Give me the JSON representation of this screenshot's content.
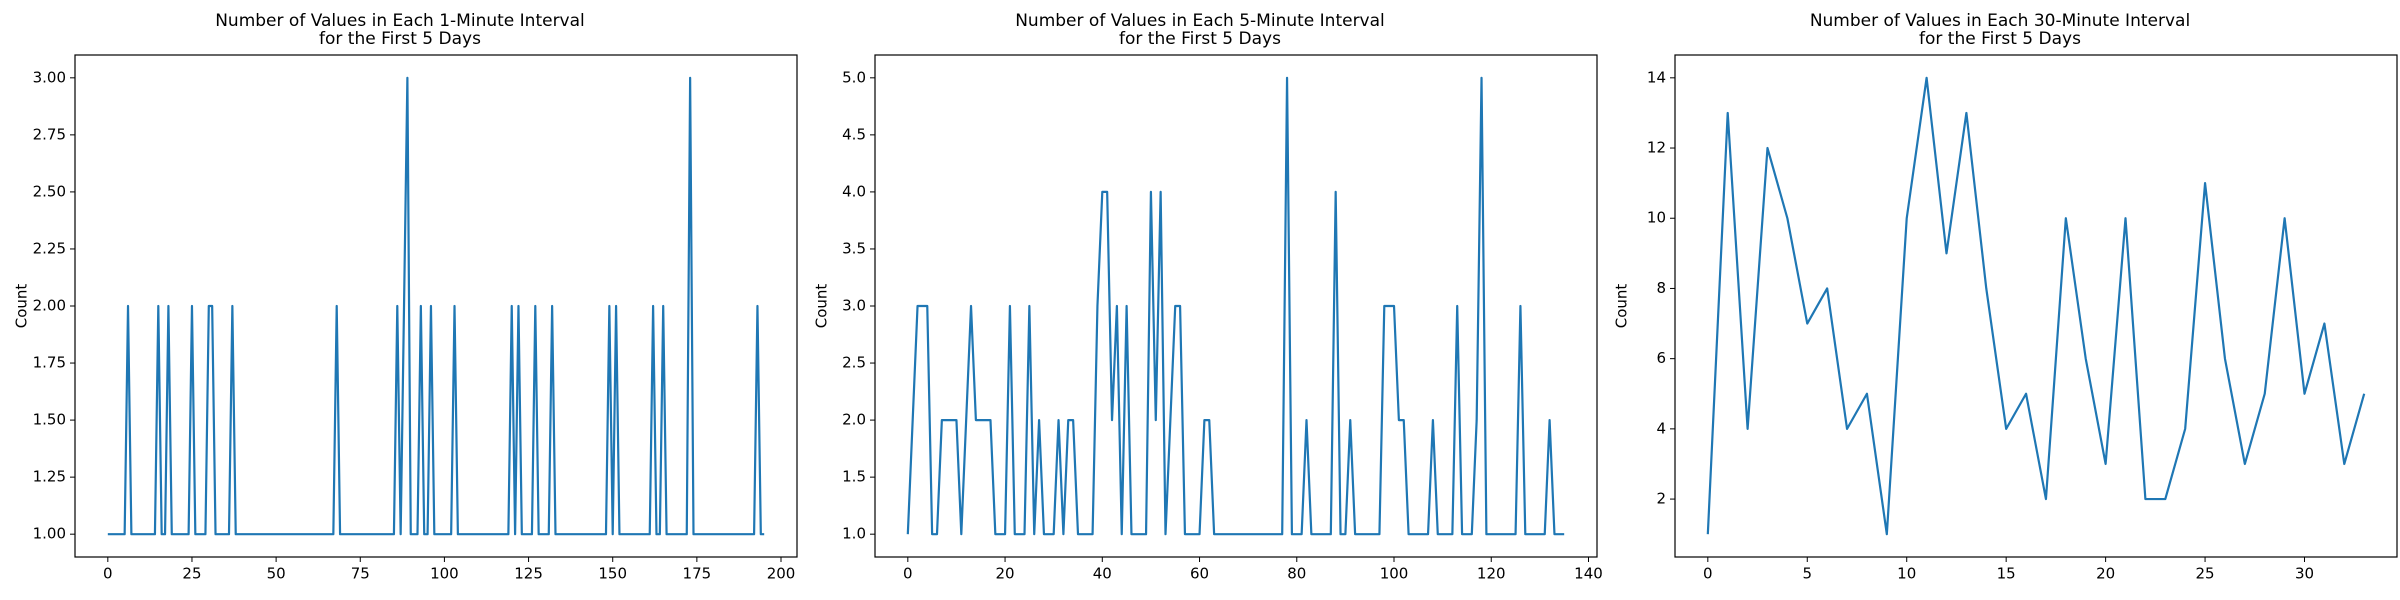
{
  "chart_data": [
    {
      "type": "line",
      "title": "Number of Values in Each 1-Minute Interval\nfor the First 5 Days",
      "y_label": "Count",
      "color": "#1f77b4",
      "values": [
        1,
        1,
        1,
        1,
        1,
        1,
        2,
        1,
        1,
        1,
        1,
        1,
        1,
        1,
        1,
        2,
        1,
        1,
        2,
        1,
        1,
        1,
        1,
        1,
        1,
        2,
        1,
        1,
        1,
        1,
        2,
        2,
        1,
        1,
        1,
        1,
        1,
        2,
        1,
        1,
        1,
        1,
        1,
        1,
        1,
        1,
        1,
        1,
        1,
        1,
        1,
        1,
        1,
        1,
        1,
        1,
        1,
        1,
        1,
        1,
        1,
        1,
        1,
        1,
        1,
        1,
        1,
        1,
        2,
        1,
        1,
        1,
        1,
        1,
        1,
        1,
        1,
        1,
        1,
        1,
        1,
        1,
        1,
        1,
        1,
        1,
        2,
        1,
        2,
        3,
        1,
        1,
        1,
        2,
        1,
        1,
        2,
        1,
        1,
        1,
        1,
        1,
        1,
        2,
        1,
        1,
        1,
        1,
        1,
        1,
        1,
        1,
        1,
        1,
        1,
        1,
        1,
        1,
        1,
        1,
        2,
        1,
        2,
        1,
        1,
        1,
        1,
        2,
        1,
        1,
        1,
        1,
        2,
        1,
        1,
        1,
        1,
        1,
        1,
        1,
        1,
        1,
        1,
        1,
        1,
        1,
        1,
        1,
        1,
        2,
        1,
        2,
        1,
        1,
        1,
        1,
        1,
        1,
        1,
        1,
        1,
        1,
        2,
        1,
        1,
        2,
        1,
        1,
        1,
        1,
        1,
        1,
        1,
        3,
        1,
        1,
        1,
        1,
        1,
        1,
        1,
        1,
        1,
        1,
        1,
        1,
        1,
        1,
        1,
        1,
        1,
        1,
        1,
        2,
        1,
        1
      ],
      "xlim": [
        -9.75,
        204.75
      ],
      "xticks": [
        0,
        25,
        50,
        75,
        100,
        125,
        150,
        175,
        200
      ],
      "ylim": [
        0.9,
        3.1
      ],
      "yticks": [
        {
          "value": 1,
          "label": "1.00"
        },
        {
          "value": 1.25,
          "label": "1.25"
        },
        {
          "value": 1.5,
          "label": "1.50"
        },
        {
          "value": 1.75,
          "label": "1.75"
        },
        {
          "value": 2,
          "label": "2.00"
        },
        {
          "value": 2.25,
          "label": "2.25"
        },
        {
          "value": 2.5,
          "label": "2.50"
        },
        {
          "value": 2.75,
          "label": "2.75"
        },
        {
          "value": 3,
          "label": "3.00"
        }
      ]
    },
    {
      "type": "line",
      "title": "Number of Values in Each 5-Minute Interval\nfor the First 5 Days",
      "y_label": "Count",
      "color": "#1f77b4",
      "values": [
        1,
        2,
        3,
        3,
        3,
        1,
        1,
        2,
        2,
        2,
        2,
        1,
        2,
        3,
        2,
        2,
        2,
        2,
        1,
        1,
        1,
        3,
        1,
        1,
        1,
        3,
        1,
        2,
        1,
        1,
        1,
        2,
        1,
        2,
        2,
        1,
        1,
        1,
        1,
        3,
        4,
        4,
        2,
        3,
        1,
        3,
        1,
        1,
        1,
        1,
        4,
        2,
        4,
        1,
        2,
        3,
        3,
        1,
        1,
        1,
        1,
        2,
        2,
        1,
        1,
        1,
        1,
        1,
        1,
        1,
        1,
        1,
        1,
        1,
        1,
        1,
        1,
        1,
        5,
        1,
        1,
        1,
        2,
        1,
        1,
        1,
        1,
        1,
        4,
        1,
        1,
        2,
        1,
        1,
        1,
        1,
        1,
        1,
        3,
        3,
        3,
        2,
        2,
        1,
        1,
        1,
        1,
        1,
        2,
        1,
        1,
        1,
        1,
        3,
        1,
        1,
        1,
        2,
        5,
        1,
        1,
        1,
        1,
        1,
        1,
        1,
        3,
        1,
        1,
        1,
        1,
        1,
        2,
        1,
        1,
        1
      ],
      "xlim": [
        -6.75,
        141.75
      ],
      "xticks": [
        0,
        20,
        40,
        60,
        80,
        100,
        120,
        140
      ],
      "ylim": [
        0.8,
        5.2
      ],
      "yticks": [
        {
          "value": 1,
          "label": "1.0"
        },
        {
          "value": 1.5,
          "label": "1.5"
        },
        {
          "value": 2,
          "label": "2.0"
        },
        {
          "value": 2.5,
          "label": "2.5"
        },
        {
          "value": 3,
          "label": "3.0"
        },
        {
          "value": 3.5,
          "label": "3.5"
        },
        {
          "value": 4,
          "label": "4.0"
        },
        {
          "value": 4.5,
          "label": "4.5"
        },
        {
          "value": 5,
          "label": "5.0"
        }
      ]
    },
    {
      "type": "line",
      "title": "Number of Values in Each 30-Minute Interval\nfor the First 5 Days",
      "y_label": "Count",
      "color": "#1f77b4",
      "values": [
        1,
        13,
        4,
        12,
        10,
        7,
        8,
        4,
        5,
        1,
        10,
        14,
        9,
        13,
        8,
        4,
        5,
        2,
        10,
        6,
        3,
        10,
        2,
        2,
        4,
        11,
        6,
        3,
        5,
        10,
        5,
        7,
        3,
        5
      ],
      "xlim": [
        -1.65,
        34.65
      ],
      "xticks": [
        0,
        5,
        10,
        15,
        20,
        25,
        30
      ],
      "ylim": [
        0.35,
        14.65
      ],
      "yticks": [
        2,
        4,
        6,
        8,
        10,
        12,
        14
      ]
    }
  ]
}
